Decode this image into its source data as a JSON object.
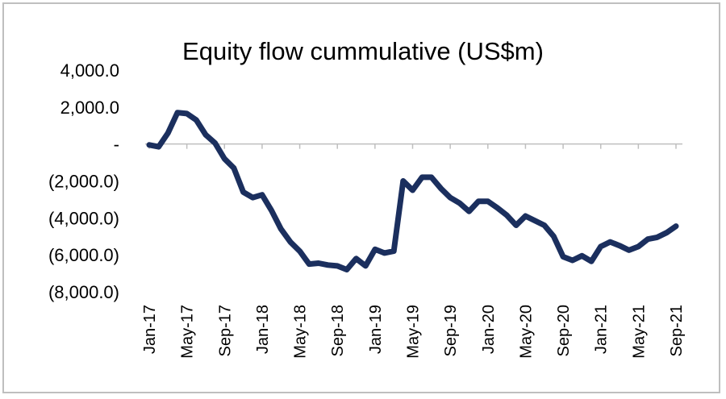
{
  "chart_data": {
    "type": "line",
    "title": "Equity flow cummulative (US$m)",
    "xlabel": "",
    "ylabel": "",
    "ylim": [
      -8000,
      4000
    ],
    "y_ticks": [
      {
        "value": 4000,
        "label": "4,000.0"
      },
      {
        "value": 2000,
        "label": "2,000.0"
      },
      {
        "value": 0,
        "label": "-"
      },
      {
        "value": -2000,
        "label": "(2,000.0)"
      },
      {
        "value": -4000,
        "label": "(4,000.0)"
      },
      {
        "value": -6000,
        "label": "(6,000.0)"
      },
      {
        "value": -8000,
        "label": "(8,000.0)"
      }
    ],
    "x_tick_labels": [
      "Jan-17",
      "May-17",
      "Sep-17",
      "Jan-18",
      "May-18",
      "Sep-18",
      "Jan-19",
      "May-19",
      "Sep-19",
      "Jan-20",
      "May-20",
      "Sep-20",
      "Jan-21",
      "May-21",
      "Sep-21"
    ],
    "grid": false,
    "line_color": "#1b2f5e",
    "series": [
      {
        "x": [
          "Jan-17",
          "Feb-17",
          "Mar-17",
          "Apr-17",
          "May-17",
          "Jun-17",
          "Jul-17",
          "Aug-17",
          "Sep-17",
          "Oct-17",
          "Nov-17",
          "Dec-17",
          "Jan-18",
          "Feb-18",
          "Mar-18",
          "Apr-18",
          "May-18",
          "Jun-18",
          "Jul-18",
          "Aug-18",
          "Sep-18",
          "Oct-18",
          "Nov-18",
          "Dec-18",
          "Jan-19",
          "Feb-19",
          "Mar-19",
          "Apr-19",
          "May-19",
          "Jun-19",
          "Jul-19",
          "Aug-19",
          "Sep-19",
          "Oct-19",
          "Nov-19",
          "Dec-19",
          "Jan-20",
          "Feb-20",
          "Mar-20",
          "Apr-20",
          "May-20",
          "Jun-20",
          "Jul-20",
          "Aug-20",
          "Sep-20",
          "Oct-20",
          "Nov-20",
          "Dec-20",
          "Jan-21",
          "Feb-21",
          "Mar-21",
          "Apr-21",
          "May-21",
          "Jun-21",
          "Jul-21",
          "Aug-21",
          "Sep-21"
        ],
        "values": [
          -50,
          -150,
          600,
          1700,
          1650,
          1300,
          500,
          50,
          -800,
          -1300,
          -2600,
          -2900,
          -2750,
          -3600,
          -4600,
          -5300,
          -5800,
          -6500,
          -6450,
          -6550,
          -6600,
          -6800,
          -6200,
          -6600,
          -5700,
          -5900,
          -5800,
          -2000,
          -2500,
          -1800,
          -1800,
          -2400,
          -2900,
          -3200,
          -3650,
          -3100,
          -3100,
          -3450,
          -3850,
          -4400,
          -3900,
          -4150,
          -4400,
          -5000,
          -6100,
          -6300,
          -6050,
          -6350,
          -5550,
          -5300,
          -5500,
          -5750,
          -5550,
          -5150,
          -5050,
          -4800,
          -4450
        ]
      }
    ]
  }
}
